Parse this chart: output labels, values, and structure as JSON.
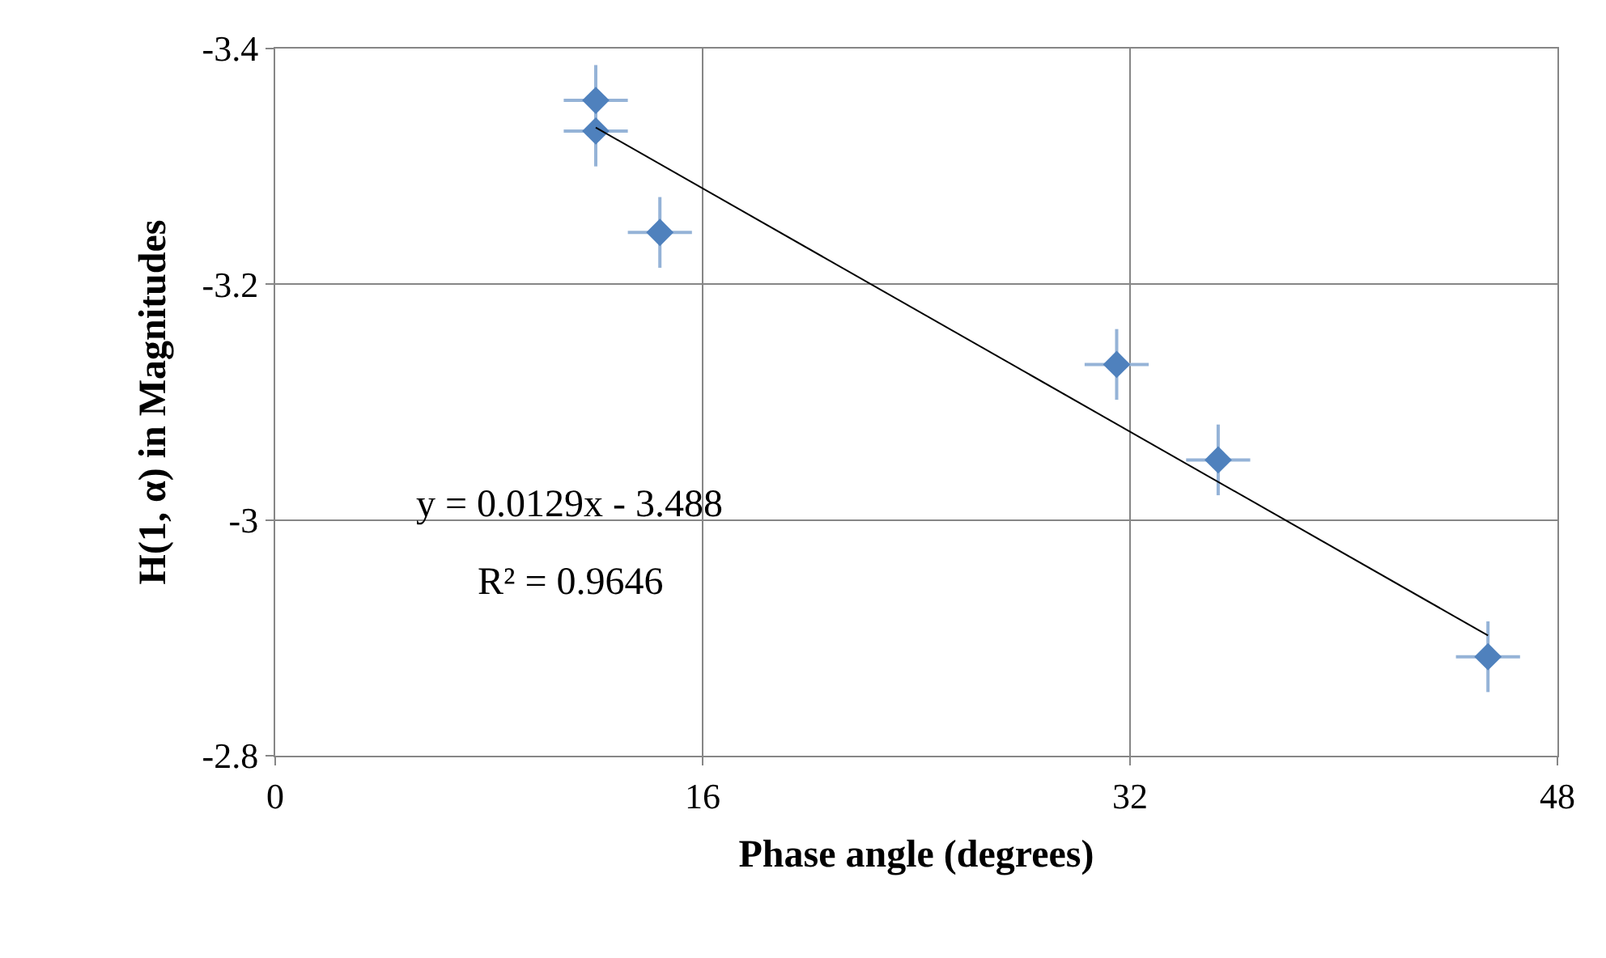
{
  "chart_data": {
    "type": "scatter",
    "xlabel": "Phase angle (degrees)",
    "ylabel": "H(1, α) in Magnitudes",
    "xlim": [
      0,
      48
    ],
    "xticks": [
      0,
      16,
      32,
      48
    ],
    "ylim": [
      -2.8,
      -3.4
    ],
    "yticks": [
      -2.8,
      -3.2,
      -3,
      -3.4
    ],
    "grid": true,
    "marker": "diamond",
    "annotations": [
      "y = 0.0129x - 3.488",
      "R² = 0.9646"
    ],
    "series": [
      {
        "color": "#4f81bd",
        "x": [
          12,
          12,
          14.4,
          31.5,
          35.3,
          45.4
        ],
        "values": [
          -3.356,
          -3.33,
          -3.244,
          -3.132,
          -3.051,
          -2.884
        ],
        "errors": [
          0.03,
          0.03,
          0.03,
          0.03,
          0.03,
          0.03
        ],
        "xerrors": [
          1.2,
          1.2,
          1.2,
          1.2,
          1.2,
          1.2
        ]
      },
      {
        "type": "line",
        "color": "#000000",
        "marker": "none",
        "x": [
          12,
          45.4
        ],
        "values": [
          -3.333,
          -2.902
        ]
      }
    ]
  }
}
